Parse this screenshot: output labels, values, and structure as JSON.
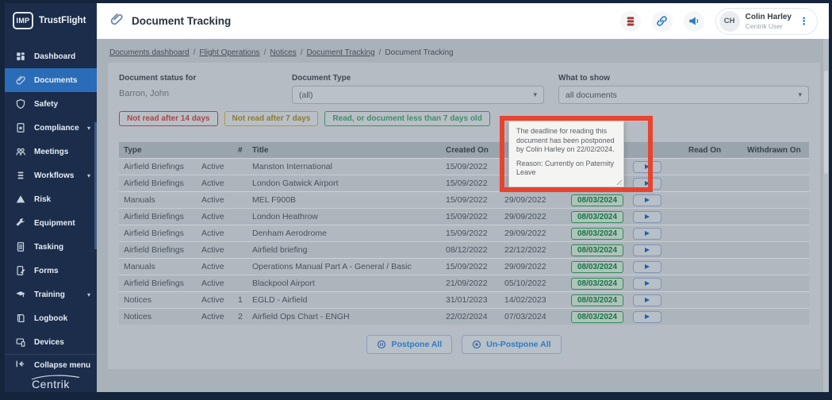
{
  "colors": {
    "frame": "#14243a",
    "sidebar": "#1b2d4b",
    "active": "#2b6cb8",
    "accent": "#2f7bc4",
    "highlight": "#e8432f",
    "badgeborder": "#338a5c",
    "badgetext": "#1a724a",
    "play": "#1d5fb0",
    "legendred": "#ab4747",
    "legendamber": "#ad9a45",
    "legendgreen": "#3f8f68"
  },
  "sidebar": {
    "logo_badge": "IMP",
    "brand": "TrustFlight",
    "items": [
      {
        "label": "Dashboard",
        "icon": "dashboard",
        "active": false,
        "chevron": false
      },
      {
        "label": "Documents",
        "icon": "paperclip",
        "active": true,
        "chevron": false
      },
      {
        "label": "Safety",
        "icon": "shield",
        "active": false,
        "chevron": false
      },
      {
        "label": "Compliance",
        "icon": "clipboard-star",
        "active": false,
        "chevron": true
      },
      {
        "label": "Meetings",
        "icon": "people",
        "active": false,
        "chevron": false
      },
      {
        "label": "Workflows",
        "icon": "layers",
        "active": false,
        "chevron": true
      },
      {
        "label": "Risk",
        "icon": "triangle",
        "active": false,
        "chevron": false
      },
      {
        "label": "Equipment",
        "icon": "wrench",
        "active": false,
        "chevron": false
      },
      {
        "label": "Tasking",
        "icon": "document",
        "active": false,
        "chevron": false
      },
      {
        "label": "Forms",
        "icon": "form-pencil",
        "active": false,
        "chevron": false
      },
      {
        "label": "Training",
        "icon": "graduation-cap",
        "active": false,
        "chevron": true
      },
      {
        "label": "Logbook",
        "icon": "book",
        "active": false,
        "chevron": false
      },
      {
        "label": "Devices",
        "icon": "devices",
        "active": false,
        "chevron": false
      }
    ],
    "collapse_label": "Collapse menu",
    "footer_logo": "Centrik"
  },
  "header": {
    "title": "Document Tracking",
    "user": {
      "initials": "CH",
      "name": "Colin Harley",
      "role": "Centrik User"
    }
  },
  "breadcrumb": {
    "links": [
      "Documents dashboard",
      "Flight Operations",
      "Notices",
      "Document Tracking"
    ],
    "current": "Document Tracking"
  },
  "filters": {
    "status_for_label": "Document status for",
    "status_for_value": "Barron, John",
    "document_type_label": "Document Type",
    "document_type_value": "(all)",
    "what_to_show_label": "What to show",
    "what_to_show_value": "all documents",
    "legend": [
      {
        "label": "Not read after 14 days"
      },
      {
        "label": "Not read after 7 days"
      },
      {
        "label": "Read, or document less than 7 days old"
      }
    ]
  },
  "table": {
    "headers": {
      "type": "Type",
      "status": "",
      "num": "#",
      "title": "Title",
      "created": "Created On",
      "deadline": "",
      "postponed": "",
      "action": "",
      "read_on": "Read On",
      "withdrawn_on": "Withdrawn On"
    },
    "rows": [
      {
        "type": "Airfield Briefings",
        "status": "Active",
        "num": "",
        "title": "Manston International",
        "created": "15/09/2022",
        "deadline": "",
        "postponed": ""
      },
      {
        "type": "Airfield Briefings",
        "status": "Active",
        "num": "",
        "title": "London Gatwick Airport",
        "created": "15/09/2022",
        "deadline": "",
        "postponed": ""
      },
      {
        "type": "Manuals",
        "status": "Active",
        "num": "",
        "title": "MEL F900B",
        "created": "15/09/2022",
        "deadline": "29/09/2022",
        "postponed": "08/03/2024"
      },
      {
        "type": "Airfield Briefings",
        "status": "Active",
        "num": "",
        "title": "London Heathrow",
        "created": "15/09/2022",
        "deadline": "29/09/2022",
        "postponed": "08/03/2024"
      },
      {
        "type": "Airfield Briefings",
        "status": "Active",
        "num": "",
        "title": "Denham Aerodrome",
        "created": "15/09/2022",
        "deadline": "29/09/2022",
        "postponed": "08/03/2024"
      },
      {
        "type": "Airfield Briefings",
        "status": "Active",
        "num": "",
        "title": "Airfield briefing",
        "created": "08/12/2022",
        "deadline": "22/12/2022",
        "postponed": "08/03/2024"
      },
      {
        "type": "Manuals",
        "status": "Active",
        "num": "",
        "title": "Operations Manual Part A - General / Basic",
        "created": "15/09/2022",
        "deadline": "29/09/2022",
        "postponed": "08/03/2024"
      },
      {
        "type": "Airfield Briefings",
        "status": "Active",
        "num": "",
        "title": "Blackpool Airport",
        "created": "21/09/2022",
        "deadline": "05/10/2022",
        "postponed": "08/03/2024"
      },
      {
        "type": "Notices",
        "status": "Active",
        "num": "1",
        "title": "EGLD - Airfield",
        "created": "31/01/2023",
        "deadline": "14/02/2023",
        "postponed": "08/03/2024"
      },
      {
        "type": "Notices",
        "status": "Active",
        "num": "2",
        "title": "Airfield Ops Chart - ENGH",
        "created": "22/02/2024",
        "deadline": "07/03/2024",
        "postponed": "08/03/2024"
      }
    ]
  },
  "actions": {
    "postpone_all": "Postpone All",
    "unpostpone_all": "Un-Postpone All"
  },
  "tooltip": {
    "line1": "The deadline for reading this document has been postponed by Colin Harley on 22/02/2024.",
    "line2": "Reason: Currently on Paternity Leave"
  }
}
